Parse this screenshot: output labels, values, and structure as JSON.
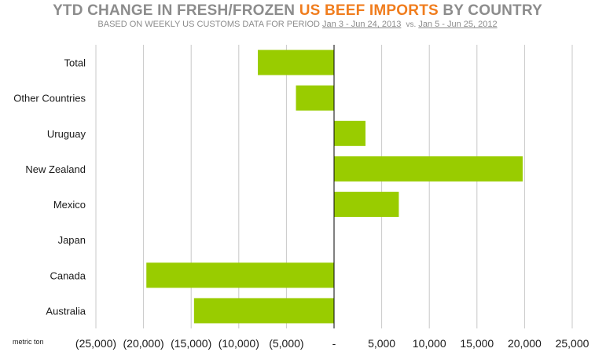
{
  "header": {
    "title_prefix": "YTD CHANGE IN FRESH/FROZEN ",
    "title_accent": "US BEEF IMPORTS",
    "title_suffix": " BY COUNTRY",
    "subtitle_prefix": "BASED ON WEEKLY US CUSTOMS DATA FOR PERIOD ",
    "period_current": "Jan 3 - Jun 24, 2013",
    "vs": "vs.",
    "period_previous": "Jan 5 - Jun 25, 2012"
  },
  "colors": {
    "bar": "#99cc00",
    "grid": "#c8c8c8",
    "title": "#8c8c8c",
    "accent": "#f07d1e"
  },
  "chart_data": {
    "type": "bar",
    "orientation": "horizontal",
    "categories": [
      "Total",
      "Other Countries",
      "Uruguay",
      "New Zealand",
      "Mexico",
      "Japan",
      "Canada",
      "Australia"
    ],
    "values": [
      -8000,
      -4000,
      3300,
      19800,
      6800,
      0,
      -19700,
      -14700
    ],
    "xlim": [
      -25000,
      25000
    ],
    "x_ticks": [
      -25000,
      -20000,
      -15000,
      -10000,
      -5000,
      0,
      5000,
      10000,
      15000,
      20000,
      25000
    ],
    "x_tick_labels": [
      "(25,000)",
      "(20,000)",
      "(15,000)",
      "(10,000)",
      "(5,000)",
      "-",
      "5,000",
      "10,000",
      "15,000",
      "20,000",
      "25,000"
    ],
    "xlabel": "metric ton",
    "grid": true,
    "legend": "none"
  }
}
